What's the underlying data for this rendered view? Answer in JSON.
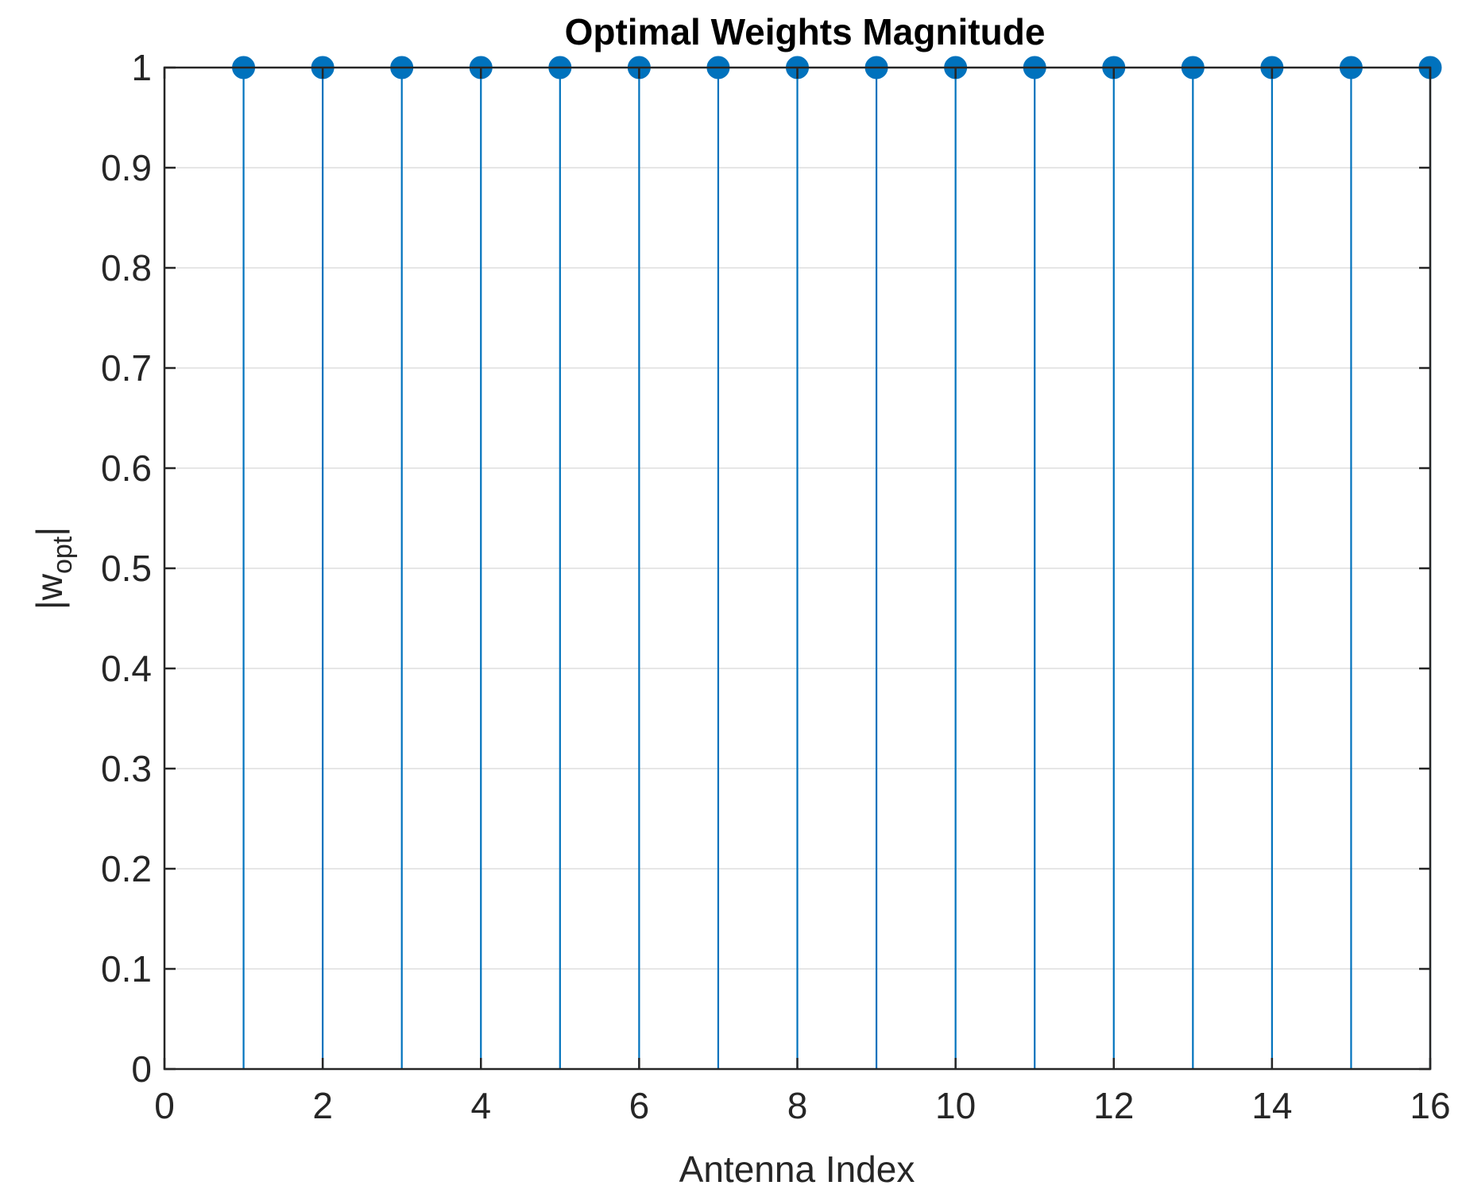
{
  "chart_data": {
    "type": "stem",
    "title": "Optimal Weights Magnitude",
    "xlabel": "Antenna Index",
    "ylabel": {
      "main": "|w",
      "subscript": "opt",
      "suffix": "|"
    },
    "xlim": [
      0,
      16
    ],
    "ylim": [
      0,
      1
    ],
    "xticks": [
      0,
      2,
      4,
      6,
      8,
      10,
      12,
      14,
      16
    ],
    "yticks": [
      0,
      0.1,
      0.2,
      0.3,
      0.4,
      0.5,
      0.6,
      0.7,
      0.8,
      0.9,
      1
    ],
    "grid": "horizontal",
    "x": [
      1,
      2,
      3,
      4,
      5,
      6,
      7,
      8,
      9,
      10,
      11,
      12,
      13,
      14,
      15,
      16
    ],
    "y": [
      1,
      1,
      1,
      1,
      1,
      1,
      1,
      1,
      1,
      1,
      1,
      1,
      1,
      1,
      1,
      1
    ],
    "color": "#0072bd"
  }
}
